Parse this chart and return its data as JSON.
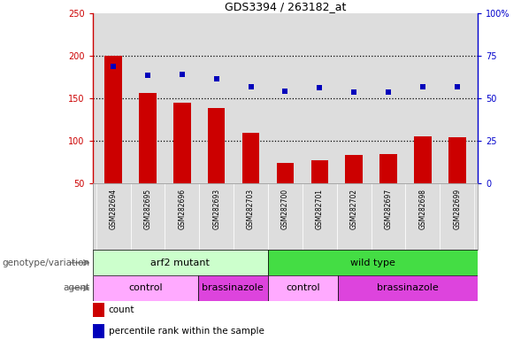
{
  "title": "GDS3394 / 263182_at",
  "samples": [
    "GSM282694",
    "GSM282695",
    "GSM282696",
    "GSM282693",
    "GSM282703",
    "GSM282700",
    "GSM282701",
    "GSM282702",
    "GSM282697",
    "GSM282698",
    "GSM282699"
  ],
  "counts": [
    200,
    157,
    145,
    139,
    110,
    74,
    77,
    84,
    85,
    106,
    105
  ],
  "percentiles": [
    188,
    177,
    178,
    173,
    164,
    159,
    163,
    158,
    158,
    164,
    164
  ],
  "ylim_left": [
    50,
    250
  ],
  "ylim_right": [
    0,
    100
  ],
  "yticks_left": [
    50,
    100,
    150,
    200,
    250
  ],
  "yticks_right": [
    0,
    25,
    50,
    75,
    100
  ],
  "bar_color": "#cc0000",
  "dot_color": "#0000bb",
  "bg_color": "#dddddd",
  "groups": [
    {
      "label": "arf2 mutant",
      "start": 0,
      "end": 5,
      "color": "#ccffcc"
    },
    {
      "label": "wild type",
      "start": 5,
      "end": 11,
      "color": "#44dd44"
    }
  ],
  "agents": [
    {
      "label": "control",
      "start": 0,
      "end": 3,
      "color": "#ffaaff"
    },
    {
      "label": "brassinazole",
      "start": 3,
      "end": 5,
      "color": "#dd44dd"
    },
    {
      "label": "control",
      "start": 5,
      "end": 7,
      "color": "#ffaaff"
    },
    {
      "label": "brassinazole",
      "start": 7,
      "end": 11,
      "color": "#dd44dd"
    }
  ],
  "row_labels": [
    "genotype/variation",
    "agent"
  ],
  "legend_count_label": "count",
  "legend_pct_label": "percentile rank within the sample",
  "left_axis_color": "#cc0000",
  "right_axis_color": "#0000cc",
  "bar_width": 0.5,
  "dotted_grid_lines": [
    100,
    150,
    200
  ]
}
